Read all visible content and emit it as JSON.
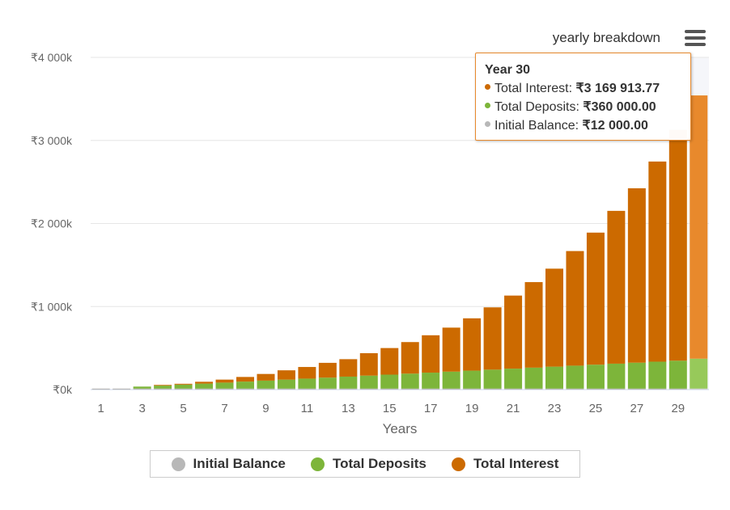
{
  "chart_data": {
    "type": "bar",
    "stacked": true,
    "subtitle": "yearly breakdown",
    "xlabel": "Years",
    "ylabel": "",
    "ylim": [
      0,
      4000000
    ],
    "y_ticks": [
      0,
      1000000,
      2000000,
      3000000,
      4000000
    ],
    "y_tick_labels": [
      "₹0k",
      "₹1 000k",
      "₹2 000k",
      "₹3 000k",
      "₹4 000k"
    ],
    "x_tick_labels": [
      "1",
      "3",
      "5",
      "7",
      "9",
      "11",
      "13",
      "15",
      "17",
      "19",
      "21",
      "23",
      "25",
      "27",
      "29"
    ],
    "categories": [
      1,
      2,
      3,
      4,
      5,
      6,
      7,
      8,
      9,
      10,
      11,
      12,
      13,
      14,
      15,
      16,
      17,
      18,
      19,
      20,
      21,
      22,
      23,
      24,
      25,
      26,
      27,
      28,
      29,
      30
    ],
    "grid": true,
    "legend_position": "bottom",
    "highlighted_year": 30,
    "series": [
      {
        "name": "Initial Balance",
        "color": "#b8b8b8",
        "values": [
          12000,
          12000,
          12000,
          12000,
          12000,
          12000,
          12000,
          12000,
          12000,
          12000,
          12000,
          12000,
          12000,
          12000,
          12000,
          12000,
          12000,
          12000,
          12000,
          12000,
          12000,
          12000,
          12000,
          12000,
          12000,
          12000,
          12000,
          12000,
          12000,
          12000
        ]
      },
      {
        "name": "Total Deposits",
        "color": "#7db53a",
        "values": [
          0,
          0,
          24000,
          36000,
          48000,
          60000,
          72000,
          84000,
          96000,
          108000,
          120000,
          132000,
          144000,
          156000,
          168000,
          180000,
          192000,
          204000,
          216000,
          228000,
          240000,
          252000,
          264000,
          276000,
          288000,
          300000,
          312000,
          324000,
          336000,
          360000
        ]
      },
      {
        "name": "Total Interest",
        "color": "#cc6a00",
        "values": [
          0,
          0,
          0,
          8000,
          10000,
          22000,
          36000,
          56000,
          80000,
          112000,
          140000,
          178000,
          210000,
          270000,
          320000,
          380000,
          450000,
          530000,
          630000,
          750000,
          880000,
          1030000,
          1180000,
          1380000,
          1590000,
          1840000,
          2100000,
          2410000,
          2780000,
          3169913.77
        ]
      }
    ]
  },
  "tooltip": {
    "title": "Year 30",
    "rows": [
      {
        "label": "Total Interest: ",
        "value": "₹3 169 913.77",
        "color": "#cc6a00"
      },
      {
        "label": "Total Deposits: ",
        "value": "₹360 000.00",
        "color": "#7db53a"
      },
      {
        "label": "Initial Balance: ",
        "value": "₹12 000.00",
        "color": "#b8b8b8"
      }
    ]
  },
  "legend": [
    {
      "label": "Initial Balance",
      "color": "#b8b8b8"
    },
    {
      "label": "Total Deposits",
      "color": "#7db53a"
    },
    {
      "label": "Total Interest",
      "color": "#cc6a00"
    }
  ],
  "menu_icon": "hamburger-menu-icon"
}
